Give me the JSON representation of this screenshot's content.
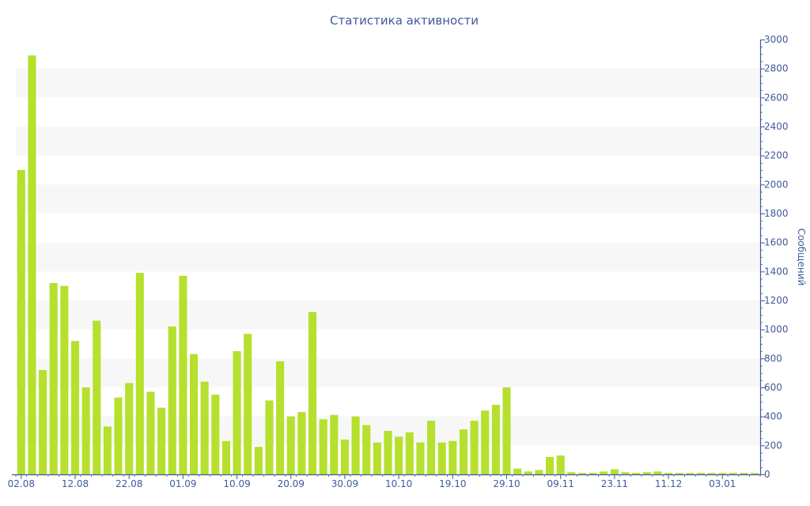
{
  "chart_data": {
    "type": "bar",
    "title": "Статистика активности",
    "ylabel": "Сообщений",
    "xlabel": "",
    "ylim": [
      0,
      3000
    ],
    "yticks": [
      0,
      200,
      400,
      600,
      800,
      1000,
      1200,
      1400,
      1600,
      1800,
      2000,
      2200,
      2400,
      2600,
      2800,
      3000
    ],
    "y_axis_side": "right",
    "grid": "alternating horizontal bands",
    "bar_color": "#b5e02e",
    "band_color": "#f7f7f7",
    "axis_color": "#3f5a9a",
    "x_tick_labels": [
      {
        "index": 0,
        "label": "02.08"
      },
      {
        "index": 5,
        "label": "12.08"
      },
      {
        "index": 10,
        "label": "22.08"
      },
      {
        "index": 15,
        "label": "01.09"
      },
      {
        "index": 20,
        "label": "10.09"
      },
      {
        "index": 25,
        "label": "20.09"
      },
      {
        "index": 30,
        "label": "30.09"
      },
      {
        "index": 35,
        "label": "10.10"
      },
      {
        "index": 40,
        "label": "19.10"
      },
      {
        "index": 45,
        "label": "29.10"
      },
      {
        "index": 50,
        "label": "09.11"
      },
      {
        "index": 55,
        "label": "23.11"
      },
      {
        "index": 60,
        "label": "11.12"
      },
      {
        "index": 65,
        "label": "03.01"
      }
    ],
    "values": [
      2100,
      2890,
      720,
      1320,
      1300,
      920,
      600,
      1060,
      330,
      530,
      630,
      1390,
      570,
      460,
      1020,
      1370,
      830,
      640,
      550,
      230,
      850,
      970,
      190,
      510,
      780,
      400,
      430,
      1120,
      380,
      410,
      240,
      400,
      340,
      220,
      300,
      260,
      290,
      220,
      370,
      220,
      230,
      310,
      370,
      440,
      480,
      600,
      40,
      20,
      30,
      120,
      130,
      15,
      10,
      10,
      20,
      35,
      15,
      10,
      15,
      20,
      10,
      10,
      10,
      10,
      10,
      10,
      10,
      10,
      10
    ]
  }
}
